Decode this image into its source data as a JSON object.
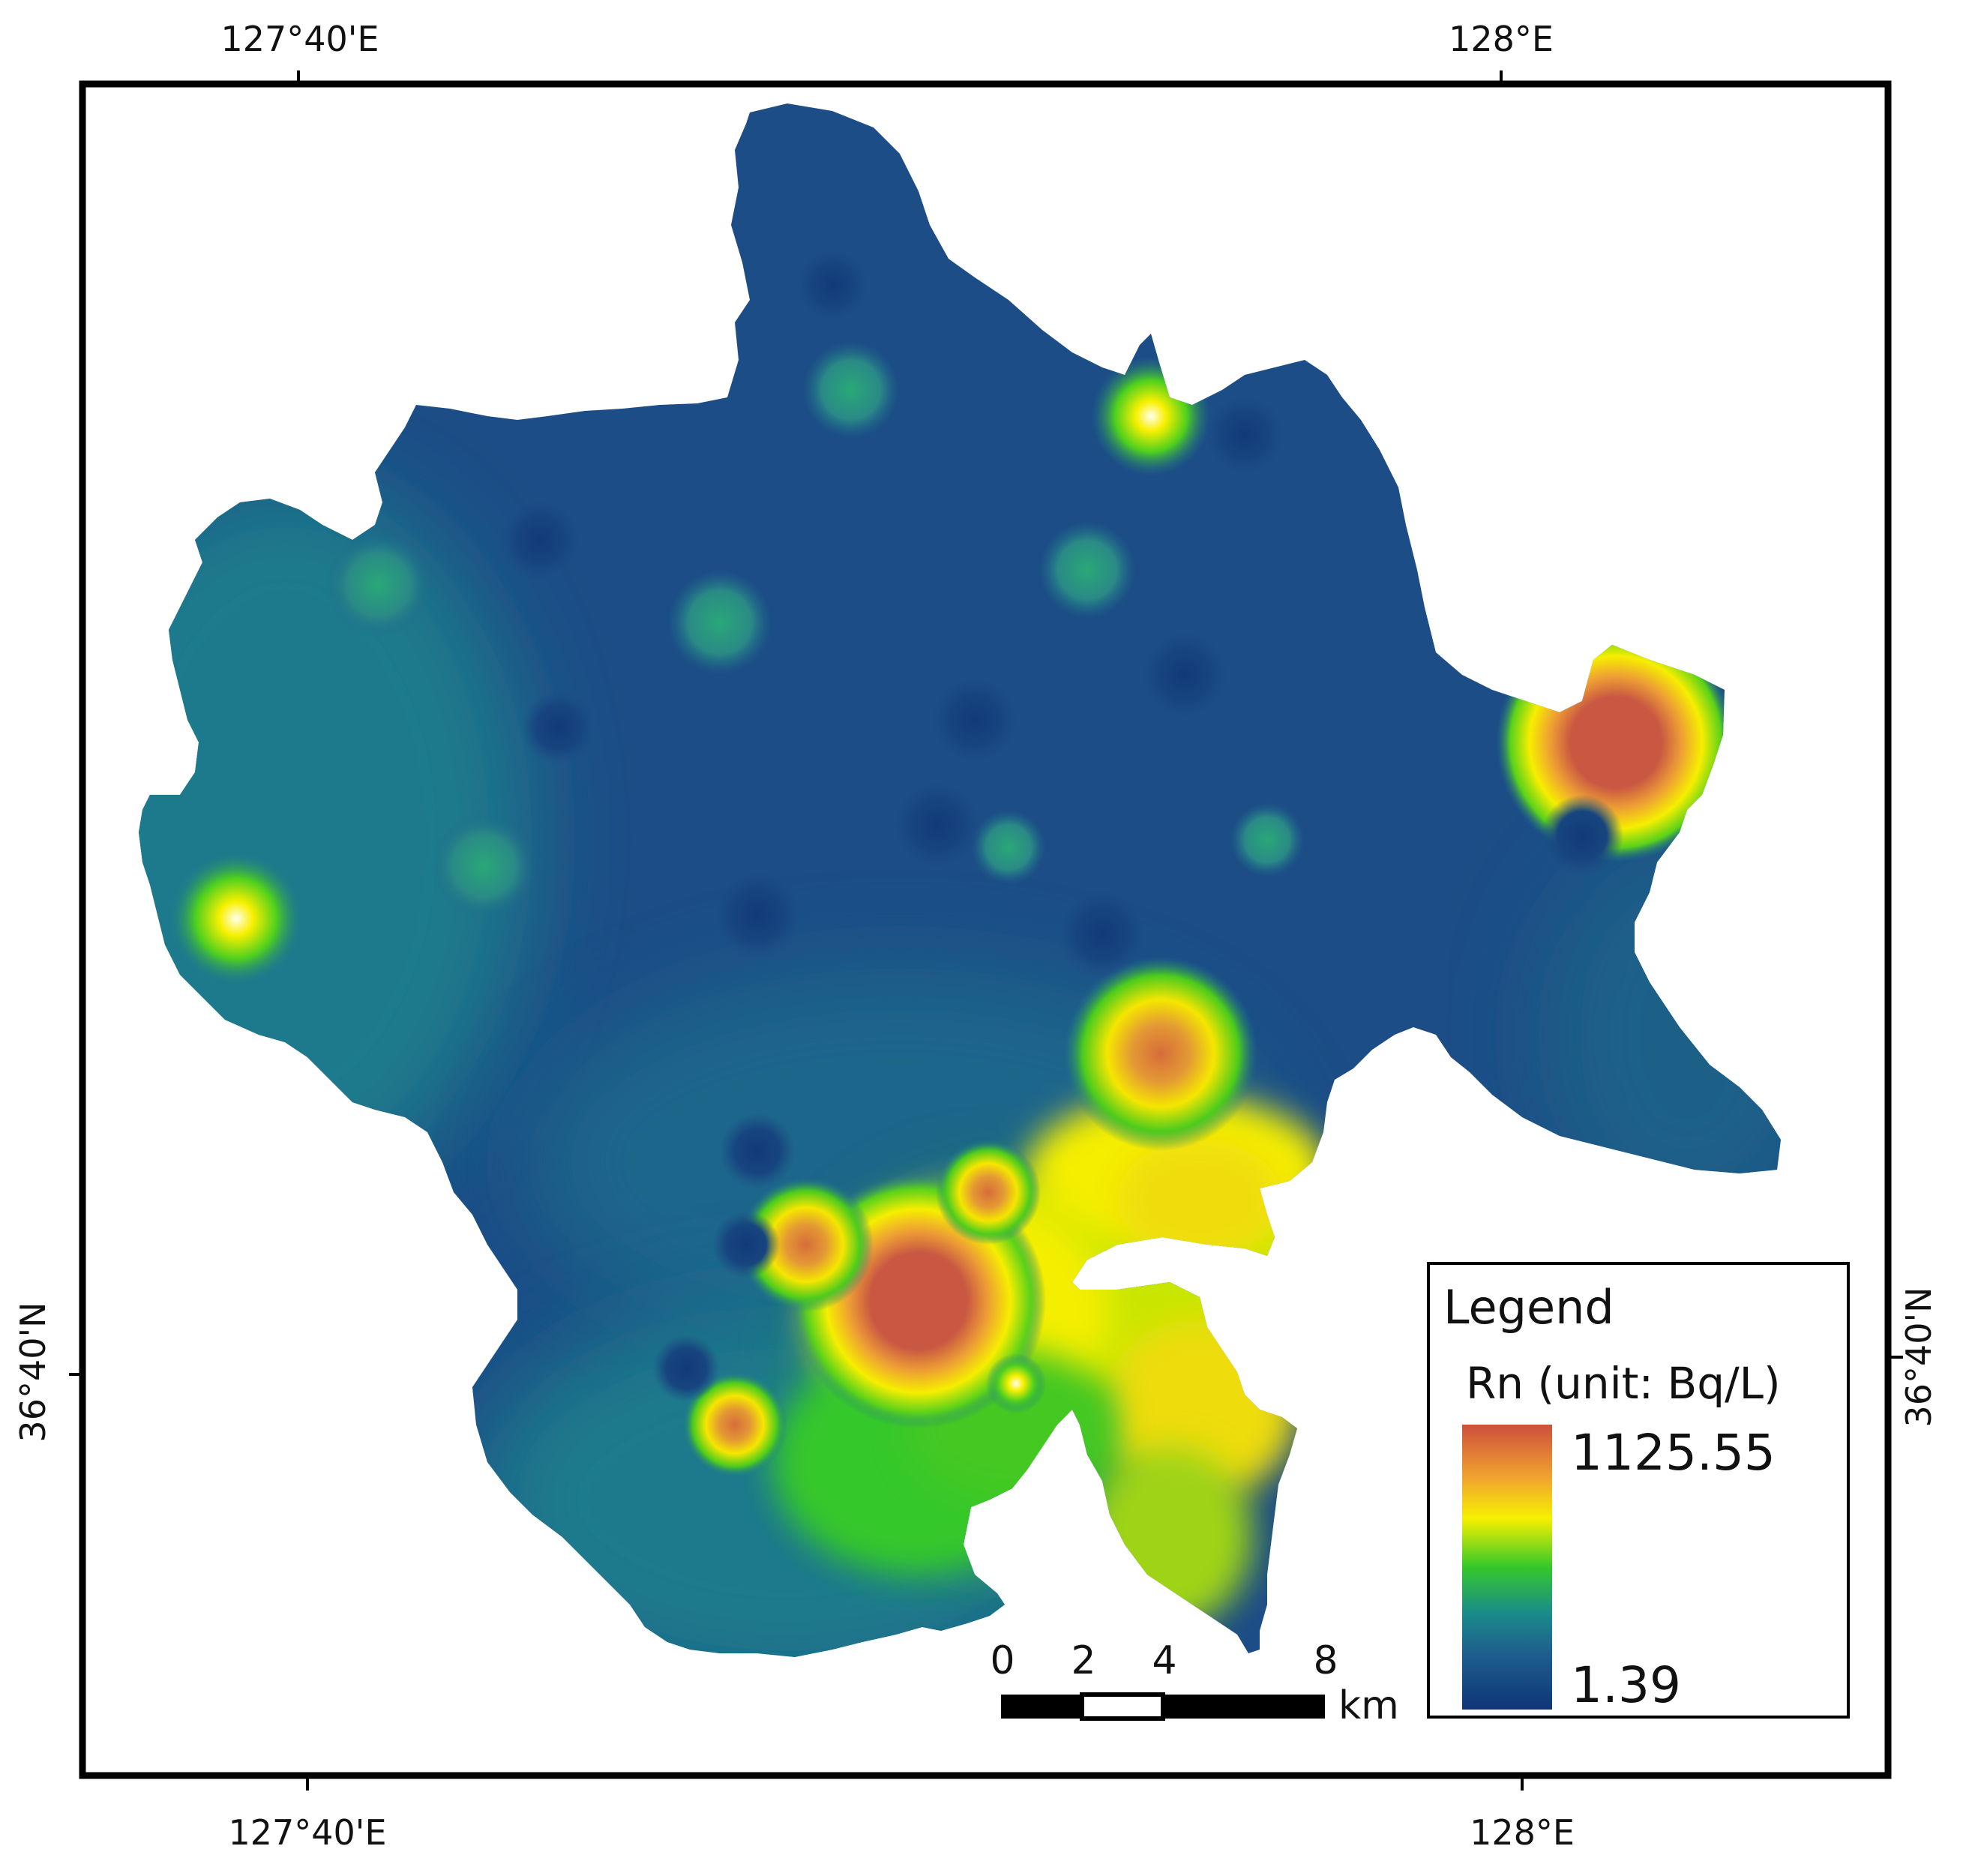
{
  "map": {
    "coords": {
      "top_left": "127°40'E",
      "top_right": "128°E",
      "bottom_left": "127°40'E",
      "bottom_right": "128°E",
      "left": "36°40'N",
      "right": "36°40'N"
    },
    "legend": {
      "title": "Legend",
      "variable": "Rn (unit: Bq/L)",
      "max_label": "1125.55",
      "min_label": "1.39",
      "ramp_colors": [
        "#d4533a",
        "#f0a030",
        "#f6f000",
        "#54d21a",
        "#12a88a",
        "#1e6a94",
        "#123a7a"
      ]
    },
    "scale_bar": {
      "ticks": [
        "0",
        "2",
        "4",
        "8"
      ],
      "unit": "km"
    },
    "colors": {
      "low": "#1c4d86",
      "mid_low": "#1e7a8c",
      "mid": "#22c040",
      "high": "#f4ee00",
      "peak": "#c95842",
      "frame": "#000000"
    }
  }
}
